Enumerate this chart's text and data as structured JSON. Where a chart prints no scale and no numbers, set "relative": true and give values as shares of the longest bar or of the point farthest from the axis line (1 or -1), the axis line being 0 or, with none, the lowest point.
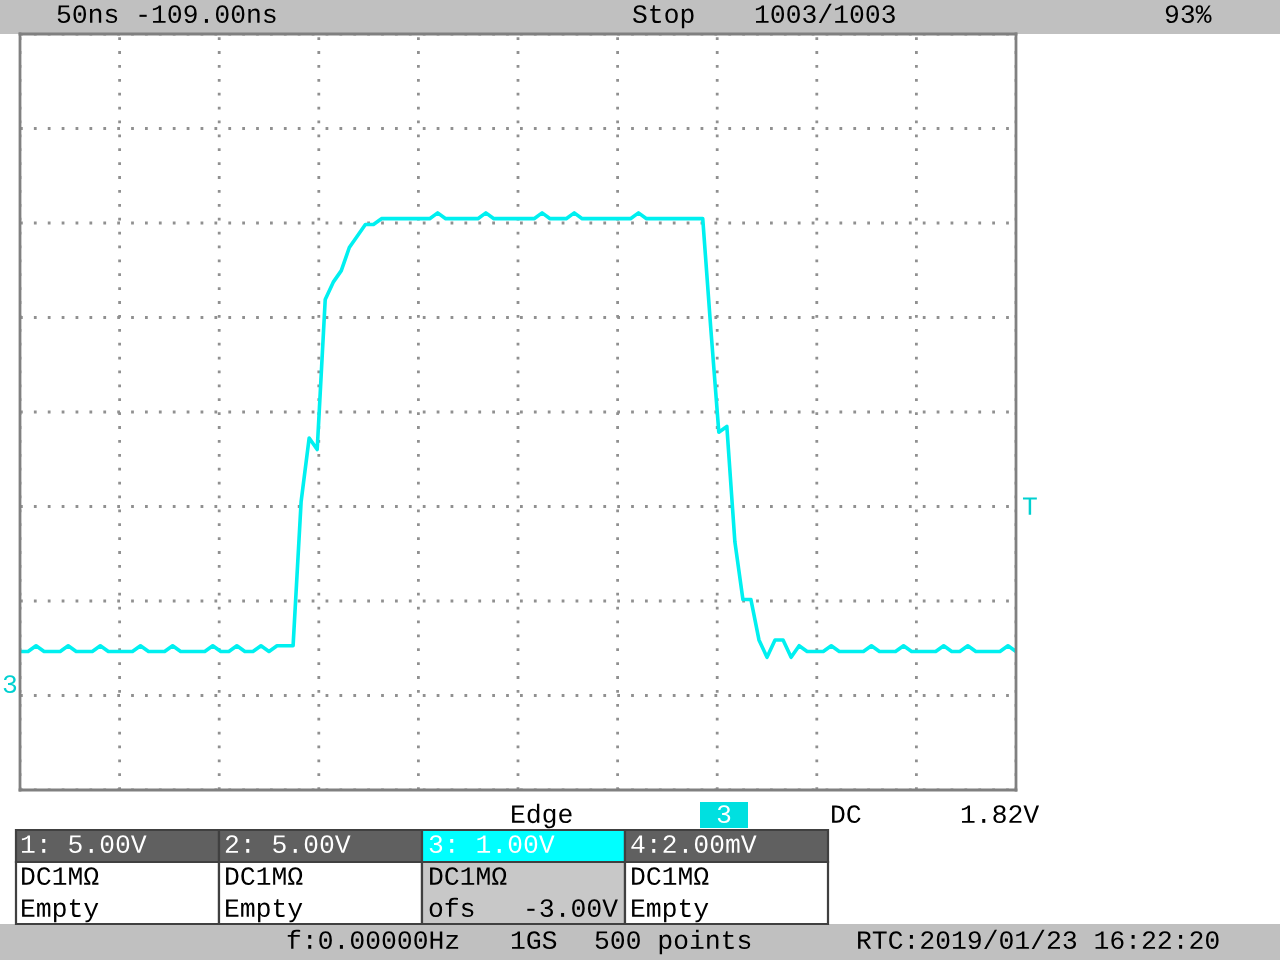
{
  "chart_data": {
    "type": "line",
    "relative": true,
    "grid": true,
    "categories": [
      null,
      null,
      null,
      null,
      null,
      null,
      null,
      null,
      null,
      null,
      null,
      null,
      null,
      null,
      null,
      null,
      null,
      null,
      null,
      null,
      null,
      null,
      null,
      null,
      null,
      null,
      null,
      null,
      null,
      null,
      null,
      null,
      null,
      null,
      null,
      null,
      null,
      null,
      null,
      null,
      null,
      null,
      null,
      null,
      null,
      null,
      null,
      null,
      null,
      null,
      null,
      null,
      null,
      null,
      null,
      null,
      null,
      null,
      null,
      null,
      null,
      null,
      null,
      null,
      null,
      null,
      null,
      null,
      null,
      null,
      null,
      null,
      null,
      null,
      null,
      null,
      null,
      null,
      null,
      null,
      null,
      null,
      null,
      null,
      null,
      null,
      null,
      null,
      null,
      null,
      null,
      null,
      null,
      null,
      null,
      null,
      null,
      null,
      null,
      null,
      null,
      null,
      null,
      null,
      null,
      null,
      null,
      null,
      null,
      null,
      null,
      null,
      null,
      null,
      null,
      null,
      null,
      null,
      null,
      null,
      null,
      null,
      null,
      null,
      null
    ],
    "series": [
      {
        "color": "#00f0f0",
        "values": [
          0.24,
          0.24,
          0.25,
          0.24,
          0.24,
          0.24,
          0.25,
          0.24,
          0.24,
          0.24,
          0.25,
          0.24,
          0.24,
          0.24,
          0.24,
          0.25,
          0.24,
          0.24,
          0.24,
          0.25,
          0.24,
          0.24,
          0.24,
          0.24,
          0.25,
          0.24,
          0.24,
          0.25,
          0.24,
          0.24,
          0.25,
          0.24,
          0.25,
          0.25,
          0.25,
          0.5,
          0.61,
          0.59,
          0.85,
          0.88,
          0.9,
          0.94,
          0.96,
          0.98,
          0.98,
          0.99,
          0.99,
          0.99,
          0.99,
          0.99,
          0.99,
          0.99,
          1.0,
          0.99,
          0.99,
          0.99,
          0.99,
          0.99,
          1.0,
          0.99,
          0.99,
          0.99,
          0.99,
          0.99,
          0.99,
          1.0,
          0.99,
          0.99,
          0.99,
          1.0,
          0.99,
          0.99,
          0.99,
          0.99,
          0.99,
          0.99,
          0.99,
          1.0,
          0.99,
          0.99,
          0.99,
          0.99,
          0.99,
          0.99,
          0.99,
          0.99,
          0.8,
          0.62,
          0.63,
          0.43,
          0.33,
          0.33,
          0.26,
          0.23,
          0.26,
          0.26,
          0.23,
          0.25,
          0.24,
          0.24,
          0.24,
          0.25,
          0.24,
          0.24,
          0.24,
          0.24,
          0.25,
          0.24,
          0.24,
          0.24,
          0.25,
          0.24,
          0.24,
          0.24,
          0.24,
          0.25,
          0.24,
          0.24,
          0.25,
          0.24,
          0.24,
          0.24,
          0.24,
          0.25,
          0.24
        ]
      }
    ],
    "annotations": [
      "50ns -109.00ns",
      "Stop",
      "1003/1003",
      "93%",
      "Edge",
      "3",
      "DC",
      "1.82V",
      "1: 5.00V",
      "2: 5.00V",
      "3: 1.00V",
      "4:2.00mV",
      "DC1MΩ",
      "DC1MΩ",
      "DC1MΩ",
      "DC1MΩ",
      "Empty",
      "Empty",
      "ofs   -3.00V",
      "Empty",
      "f:0.00000Hz",
      "1GS",
      "500 points",
      "RTC:2019/01/23 16:22:20",
      "T",
      "3"
    ]
  }
}
